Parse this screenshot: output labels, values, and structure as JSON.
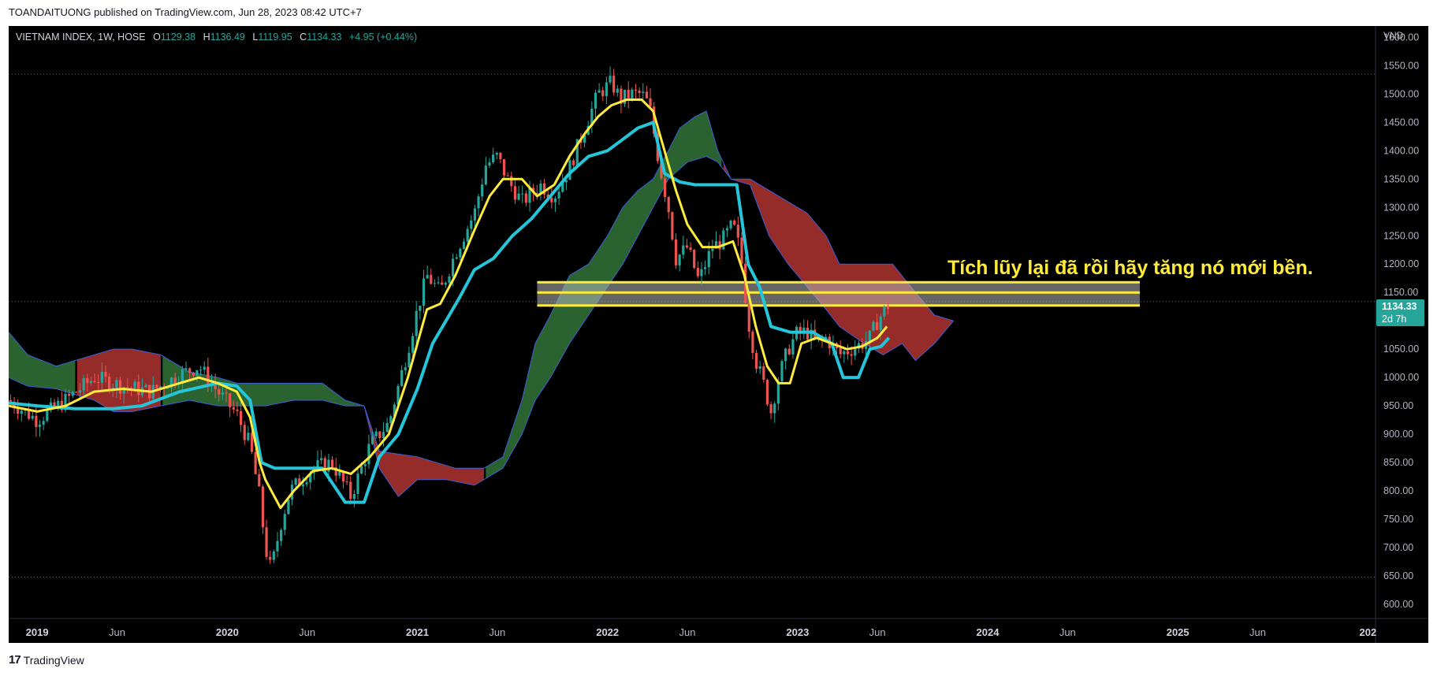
{
  "header": {
    "published_by": "TOANDAITUONG published on TradingView.com, Jun 28, 2023 08:42 UTC+7"
  },
  "legend": {
    "symbol": "VIETNAM INDEX, 1W, HOSE",
    "open_label": "O",
    "open": "1129.38",
    "high_label": "H",
    "high": "1136.49",
    "low_label": "L",
    "low": "1119.95",
    "close_label": "C",
    "close": "1134.33",
    "change": "+4.95 (+0.44%)"
  },
  "price_badge": {
    "price": "1134.33",
    "countdown": "2d 7h"
  },
  "annotation": {
    "text": "Tích lũy lại đã rồi hãy tăng nó mới bền."
  },
  "footer": {
    "brand": "TradingView",
    "logo_glyph": "17"
  },
  "colors": {
    "background": "#000000",
    "bull": "#26a69a",
    "bear": "#ef5350",
    "tenkan": "#ffeb3b",
    "kijun": "#26c6da",
    "cloud_bull": "#2e6b34",
    "cloud_bear": "#a3302d",
    "zone": "#ffeb3b",
    "annotation": "#ffeb3b"
  },
  "chart_data": {
    "type": "candlestick",
    "currency": "VND",
    "y_ticks": [
      "1600.00",
      "1550.00",
      "1500.00",
      "1450.00",
      "1400.00",
      "1350.00",
      "1300.00",
      "1250.00",
      "1200.00",
      "1150.00",
      "1100.00",
      "1050.00",
      "1000.00",
      "950.00",
      "900.00",
      "850.00",
      "800.00",
      "750.00",
      "700.00",
      "650.00",
      "600.00"
    ],
    "x_ticks": [
      {
        "t": 2019.0,
        "label": "2019",
        "bold": true
      },
      {
        "t": 2019.42,
        "label": "Jun",
        "bold": false
      },
      {
        "t": 2020.0,
        "label": "2020",
        "bold": true
      },
      {
        "t": 2020.42,
        "label": "Jun",
        "bold": false
      },
      {
        "t": 2021.0,
        "label": "2021",
        "bold": true
      },
      {
        "t": 2021.42,
        "label": "Jun",
        "bold": false
      },
      {
        "t": 2022.0,
        "label": "2022",
        "bold": true
      },
      {
        "t": 2022.42,
        "label": "Jun",
        "bold": false
      },
      {
        "t": 2023.0,
        "label": "2023",
        "bold": true
      },
      {
        "t": 2023.42,
        "label": "Jun",
        "bold": false
      },
      {
        "t": 2024.0,
        "label": "2024",
        "bold": true
      },
      {
        "t": 2024.42,
        "label": "Jun",
        "bold": false
      },
      {
        "t": 2025.0,
        "label": "2025",
        "bold": true
      },
      {
        "t": 2025.42,
        "label": "Jun",
        "bold": false
      },
      {
        "t": 2026.0,
        "label": "202",
        "bold": true
      }
    ],
    "x_range": [
      2018.85,
      2026.04
    ],
    "y_range": [
      575,
      1620
    ],
    "price_path": [
      [
        2018.85,
        960
      ],
      [
        2019.0,
        925
      ],
      [
        2019.15,
        960
      ],
      [
        2019.3,
        1000
      ],
      [
        2019.45,
        985
      ],
      [
        2019.6,
        975
      ],
      [
        2019.75,
        1005
      ],
      [
        2019.85,
        1020
      ],
      [
        2019.95,
        975
      ],
      [
        2020.05,
        935
      ],
      [
        2020.12,
        880
      ],
      [
        2020.17,
        790
      ],
      [
        2020.2,
        700
      ],
      [
        2020.23,
        660
      ],
      [
        2020.28,
        740
      ],
      [
        2020.33,
        800
      ],
      [
        2020.45,
        840
      ],
      [
        2020.55,
        850
      ],
      [
        2020.65,
        790
      ],
      [
        2020.75,
        880
      ],
      [
        2020.85,
        920
      ],
      [
        2020.95,
        1050
      ],
      [
        2021.0,
        1120
      ],
      [
        2021.05,
        1180
      ],
      [
        2021.12,
        1150
      ],
      [
        2021.2,
        1220
      ],
      [
        2021.3,
        1290
      ],
      [
        2021.36,
        1375
      ],
      [
        2021.42,
        1390
      ],
      [
        2021.48,
        1345
      ],
      [
        2021.55,
        1310
      ],
      [
        2021.65,
        1340
      ],
      [
        2021.72,
        1320
      ],
      [
        2021.8,
        1370
      ],
      [
        2021.88,
        1440
      ],
      [
        2021.95,
        1500
      ],
      [
        2022.02,
        1520
      ],
      [
        2022.07,
        1490
      ],
      [
        2022.12,
        1500
      ],
      [
        2022.18,
        1500
      ],
      [
        2022.22,
        1480
      ],
      [
        2022.27,
        1380
      ],
      [
        2022.32,
        1300
      ],
      [
        2022.36,
        1210
      ],
      [
        2022.42,
        1230
      ],
      [
        2022.48,
        1170
      ],
      [
        2022.55,
        1230
      ],
      [
        2022.6,
        1240
      ],
      [
        2022.66,
        1270
      ],
      [
        2022.7,
        1220
      ],
      [
        2022.74,
        1100
      ],
      [
        2022.78,
        1030
      ],
      [
        2022.82,
        990
      ],
      [
        2022.86,
        940
      ],
      [
        2022.9,
        1000
      ],
      [
        2022.95,
        1050
      ],
      [
        2023.0,
        1080
      ],
      [
        2023.05,
        1080
      ],
      [
        2023.1,
        1060
      ],
      [
        2023.15,
        1070
      ],
      [
        2023.22,
        1040
      ],
      [
        2023.28,
        1050
      ],
      [
        2023.34,
        1060
      ],
      [
        2023.38,
        1070
      ],
      [
        2023.42,
        1100
      ],
      [
        2023.46,
        1120
      ],
      [
        2023.49,
        1134
      ]
    ],
    "tenkan": [
      [
        2018.85,
        950
      ],
      [
        2019.0,
        940
      ],
      [
        2019.15,
        950
      ],
      [
        2019.3,
        975
      ],
      [
        2019.45,
        980
      ],
      [
        2019.6,
        975
      ],
      [
        2019.75,
        990
      ],
      [
        2019.85,
        1000
      ],
      [
        2019.95,
        990
      ],
      [
        2020.05,
        975
      ],
      [
        2020.12,
        930
      ],
      [
        2020.17,
        850
      ],
      [
        2020.2,
        820
      ],
      [
        2020.28,
        770
      ],
      [
        2020.35,
        800
      ],
      [
        2020.45,
        835
      ],
      [
        2020.55,
        840
      ],
      [
        2020.65,
        830
      ],
      [
        2020.75,
        860
      ],
      [
        2020.85,
        900
      ],
      [
        2020.95,
        1000
      ],
      [
        2021.05,
        1120
      ],
      [
        2021.12,
        1130
      ],
      [
        2021.2,
        1180
      ],
      [
        2021.3,
        1260
      ],
      [
        2021.38,
        1320
      ],
      [
        2021.45,
        1350
      ],
      [
        2021.55,
        1350
      ],
      [
        2021.63,
        1320
      ],
      [
        2021.72,
        1340
      ],
      [
        2021.8,
        1390
      ],
      [
        2021.88,
        1430
      ],
      [
        2021.95,
        1460
      ],
      [
        2022.02,
        1480
      ],
      [
        2022.1,
        1490
      ],
      [
        2022.18,
        1490
      ],
      [
        2022.24,
        1470
      ],
      [
        2022.3,
        1400
      ],
      [
        2022.36,
        1330
      ],
      [
        2022.42,
        1270
      ],
      [
        2022.5,
        1230
      ],
      [
        2022.58,
        1230
      ],
      [
        2022.66,
        1240
      ],
      [
        2022.72,
        1180
      ],
      [
        2022.78,
        1090
      ],
      [
        2022.84,
        1020
      ],
      [
        2022.9,
        990
      ],
      [
        2022.96,
        990
      ],
      [
        2023.02,
        1060
      ],
      [
        2023.1,
        1070
      ],
      [
        2023.18,
        1060
      ],
      [
        2023.26,
        1050
      ],
      [
        2023.34,
        1055
      ],
      [
        2023.42,
        1070
      ],
      [
        2023.47,
        1090
      ]
    ],
    "kijun": [
      [
        2018.85,
        955
      ],
      [
        2019.0,
        950
      ],
      [
        2019.2,
        945
      ],
      [
        2019.4,
        945
      ],
      [
        2019.55,
        950
      ],
      [
        2019.75,
        975
      ],
      [
        2019.95,
        990
      ],
      [
        2020.05,
        985
      ],
      [
        2020.12,
        960
      ],
      [
        2020.18,
        850
      ],
      [
        2020.25,
        840
      ],
      [
        2020.35,
        840
      ],
      [
        2020.5,
        840
      ],
      [
        2020.62,
        780
      ],
      [
        2020.72,
        780
      ],
      [
        2020.8,
        860
      ],
      [
        2020.9,
        900
      ],
      [
        2021.0,
        980
      ],
      [
        2021.08,
        1060
      ],
      [
        2021.15,
        1100
      ],
      [
        2021.22,
        1140
      ],
      [
        2021.3,
        1190
      ],
      [
        2021.4,
        1210
      ],
      [
        2021.5,
        1250
      ],
      [
        2021.6,
        1280
      ],
      [
        2021.7,
        1320
      ],
      [
        2021.8,
        1360
      ],
      [
        2021.9,
        1390
      ],
      [
        2022.0,
        1400
      ],
      [
        2022.08,
        1420
      ],
      [
        2022.16,
        1440
      ],
      [
        2022.24,
        1450
      ],
      [
        2022.3,
        1360
      ],
      [
        2022.38,
        1345
      ],
      [
        2022.46,
        1340
      ],
      [
        2022.56,
        1340
      ],
      [
        2022.68,
        1340
      ],
      [
        2022.74,
        1200
      ],
      [
        2022.8,
        1160
      ],
      [
        2022.86,
        1090
      ],
      [
        2022.96,
        1080
      ],
      [
        2023.08,
        1080
      ],
      [
        2023.18,
        1060
      ],
      [
        2023.24,
        1000
      ],
      [
        2023.32,
        1000
      ],
      [
        2023.38,
        1050
      ],
      [
        2023.44,
        1055
      ],
      [
        2023.48,
        1070
      ]
    ],
    "cloud_upper": [
      [
        2018.85,
        1080
      ],
      [
        2018.95,
        1040
      ],
      [
        2019.1,
        1020
      ],
      [
        2019.3,
        1040
      ],
      [
        2019.4,
        1050
      ],
      [
        2019.5,
        1050
      ],
      [
        2019.65,
        1040
      ],
      [
        2019.8,
        1010
      ],
      [
        2019.95,
        1000
      ],
      [
        2020.05,
        990
      ],
      [
        2020.2,
        990
      ],
      [
        2020.35,
        990
      ],
      [
        2020.5,
        990
      ],
      [
        2020.62,
        960
      ],
      [
        2020.72,
        950
      ],
      [
        2020.8,
        870
      ],
      [
        2021.0,
        860
      ],
      [
        2021.2,
        840
      ],
      [
        2021.35,
        840
      ],
      [
        2021.45,
        860
      ],
      [
        2021.55,
        960
      ],
      [
        2021.62,
        1060
      ],
      [
        2021.7,
        1110
      ],
      [
        2021.8,
        1180
      ],
      [
        2021.9,
        1200
      ],
      [
        2022.0,
        1250
      ],
      [
        2022.08,
        1300
      ],
      [
        2022.16,
        1330
      ],
      [
        2022.24,
        1350
      ],
      [
        2022.32,
        1400
      ],
      [
        2022.38,
        1440
      ],
      [
        2022.46,
        1460
      ],
      [
        2022.52,
        1470
      ],
      [
        2022.58,
        1400
      ],
      [
        2022.65,
        1350
      ],
      [
        2022.75,
        1350
      ],
      [
        2022.85,
        1330
      ],
      [
        2022.95,
        1310
      ],
      [
        2023.05,
        1290
      ],
      [
        2023.15,
        1250
      ],
      [
        2023.22,
        1200
      ],
      [
        2023.35,
        1200
      ],
      [
        2023.5,
        1200
      ],
      [
        2023.62,
        1150
      ],
      [
        2023.72,
        1110
      ],
      [
        2023.82,
        1100
      ]
    ],
    "cloud_lower": [
      [
        2018.85,
        1000
      ],
      [
        2018.95,
        985
      ],
      [
        2019.1,
        980
      ],
      [
        2019.3,
        960
      ],
      [
        2019.4,
        940
      ],
      [
        2019.5,
        940
      ],
      [
        2019.65,
        950
      ],
      [
        2019.8,
        960
      ],
      [
        2019.95,
        950
      ],
      [
        2020.05,
        950
      ],
      [
        2020.2,
        950
      ],
      [
        2020.35,
        960
      ],
      [
        2020.5,
        960
      ],
      [
        2020.62,
        950
      ],
      [
        2020.72,
        950
      ],
      [
        2020.8,
        840
      ],
      [
        2020.9,
        790
      ],
      [
        2021.0,
        820
      ],
      [
        2021.15,
        820
      ],
      [
        2021.3,
        810
      ],
      [
        2021.45,
        840
      ],
      [
        2021.55,
        900
      ],
      [
        2021.62,
        960
      ],
      [
        2021.7,
        1000
      ],
      [
        2021.8,
        1060
      ],
      [
        2021.9,
        1110
      ],
      [
        2022.0,
        1160
      ],
      [
        2022.08,
        1200
      ],
      [
        2022.16,
        1250
      ],
      [
        2022.24,
        1300
      ],
      [
        2022.32,
        1350
      ],
      [
        2022.42,
        1380
      ],
      [
        2022.52,
        1390
      ],
      [
        2022.58,
        1380
      ],
      [
        2022.65,
        1350
      ],
      [
        2022.75,
        1340
      ],
      [
        2022.85,
        1250
      ],
      [
        2022.95,
        1200
      ],
      [
        2023.05,
        1160
      ],
      [
        2023.15,
        1120
      ],
      [
        2023.22,
        1090
      ],
      [
        2023.35,
        1060
      ],
      [
        2023.45,
        1040
      ],
      [
        2023.55,
        1060
      ],
      [
        2023.62,
        1030
      ],
      [
        2023.72,
        1060
      ],
      [
        2023.82,
        1100
      ]
    ],
    "zone": {
      "t_start": 2021.63,
      "t_end": 2024.8,
      "top": 1168,
      "bottom": 1127,
      "lines": [
        1168,
        1150,
        1127
      ]
    },
    "dotted_levels": [
      1535,
      1134,
      648
    ]
  }
}
